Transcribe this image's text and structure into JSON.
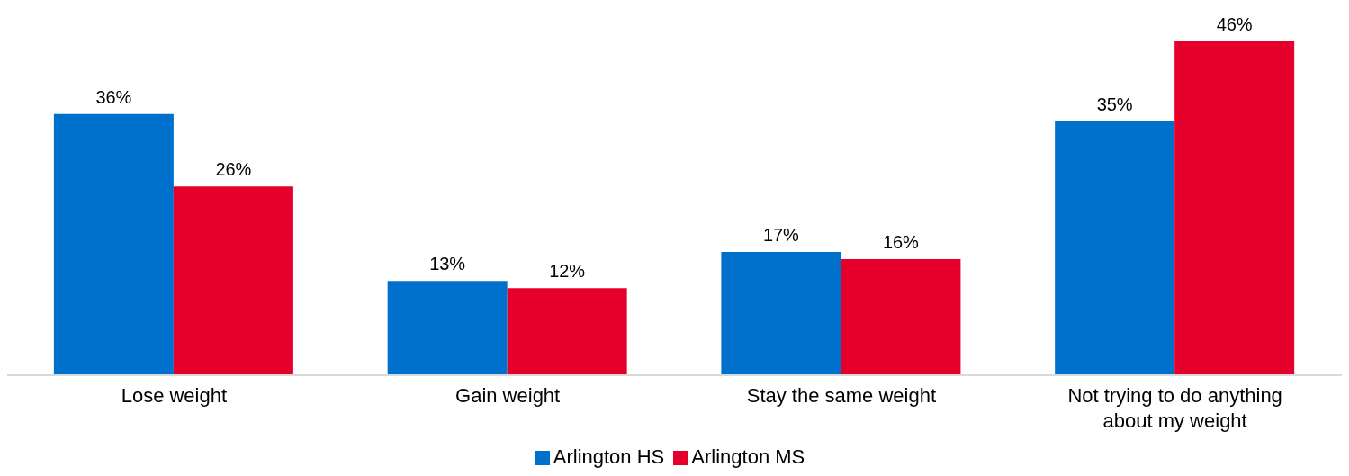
{
  "chart_data": {
    "type": "bar",
    "categories": [
      "Lose weight",
      "Gain weight",
      "Stay the same weight",
      "Not trying to do anything about my weight"
    ],
    "series": [
      {
        "name": "Arlington HS",
        "color": "#0070cd",
        "values": [
          36,
          13,
          17,
          35
        ],
        "value_labels": [
          "36%",
          "13%",
          "17%",
          "35%"
        ]
      },
      {
        "name": "Arlington MS",
        "color": "#e4002b",
        "values": [
          26,
          12,
          16,
          46
        ],
        "value_labels": [
          "26%",
          "12%",
          "16%",
          "46%"
        ]
      }
    ],
    "grid": false,
    "legend": "bottom"
  }
}
